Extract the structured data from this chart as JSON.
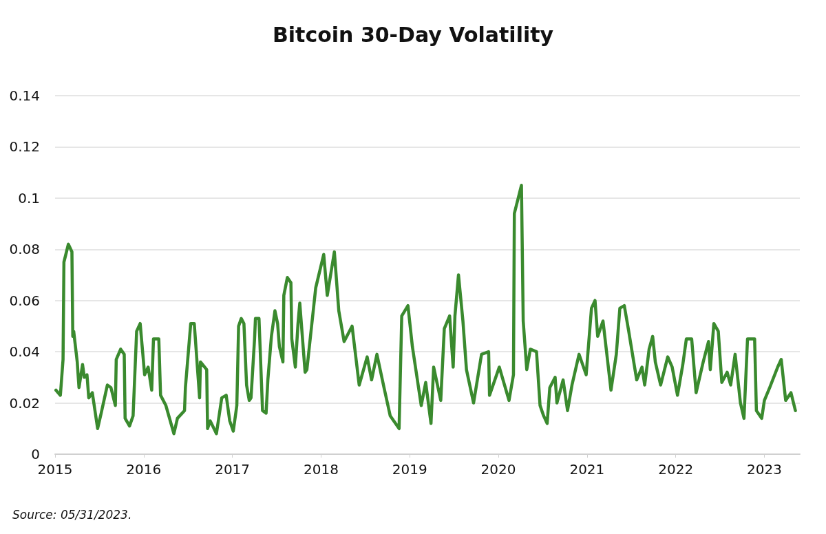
{
  "chart_data": {
    "type": "line",
    "title": "Bitcoin 30-Day Volatility",
    "annotations": [
      "Source: 05/31/2023."
    ],
    "xlim": [
      2015,
      2023.4
    ],
    "xticks": [
      2015,
      2016,
      2017,
      2018,
      2019,
      2020,
      2021,
      2022,
      2023
    ],
    "ylim": [
      0,
      0.14
    ],
    "yticks": [
      0,
      0.02,
      0.04,
      0.06,
      0.08,
      0.1,
      0.12,
      0.14
    ],
    "grid": "y",
    "series": [
      {
        "color": "#3a8a2e",
        "x": [
          2015.01,
          2015.06,
          2015.09,
          2015.1,
          2015.15,
          2015.19,
          2015.2,
          2015.21,
          2015.25,
          2015.27,
          2015.31,
          2015.33,
          2015.36,
          2015.38,
          2015.42,
          2015.48,
          2015.52,
          2015.59,
          2015.63,
          2015.68,
          2015.69,
          2015.74,
          2015.78,
          2015.79,
          2015.84,
          2015.88,
          2015.92,
          2015.96,
          2015.98,
          2016.01,
          2016.05,
          2016.09,
          2016.11,
          2016.17,
          2016.19,
          2016.25,
          2016.34,
          2016.38,
          2016.46,
          2016.47,
          2016.53,
          2016.57,
          2016.63,
          2016.64,
          2016.71,
          2016.72,
          2016.75,
          2016.82,
          2016.88,
          2016.93,
          2016.97,
          2017.01,
          2017.05,
          2017.07,
          2017.1,
          2017.13,
          2017.16,
          2017.19,
          2017.21,
          2017.25,
          2017.26,
          2017.3,
          2017.34,
          2017.38,
          2017.4,
          2017.44,
          2017.48,
          2017.51,
          2017.53,
          2017.57,
          2017.58,
          2017.62,
          2017.66,
          2017.67,
          2017.71,
          2017.74,
          2017.76,
          2017.82,
          2017.84,
          2017.94,
          2018.03,
          2018.07,
          2018.15,
          2018.2,
          2018.26,
          2018.35,
          2018.43,
          2018.52,
          2018.57,
          2018.63,
          2018.71,
          2018.78,
          2018.88,
          2018.91,
          2018.98,
          2019.03,
          2019.13,
          2019.18,
          2019.24,
          2019.27,
          2019.35,
          2019.39,
          2019.45,
          2019.49,
          2019.51,
          2019.55,
          2019.6,
          2019.64,
          2019.72,
          2019.81,
          2019.89,
          2019.9,
          2020.01,
          2020.12,
          2020.17,
          2020.18,
          2020.26,
          2020.28,
          2020.32,
          2020.36,
          2020.43,
          2020.47,
          2020.51,
          2020.55,
          2020.58,
          2020.64,
          2020.66,
          2020.73,
          2020.78,
          2020.83,
          2020.91,
          2020.99,
          2021.05,
          2021.09,
          2021.12,
          2021.18,
          2021.27,
          2021.33,
          2021.37,
          2021.42,
          2021.47,
          2021.56,
          2021.62,
          2021.65,
          2021.7,
          2021.74,
          2021.77,
          2021.83,
          2021.91,
          2021.96,
          2022.02,
          2022.08,
          2022.12,
          2022.18,
          2022.23,
          2022.31,
          2022.37,
          2022.39,
          2022.43,
          2022.48,
          2022.52,
          2022.58,
          2022.62,
          2022.67,
          2022.73,
          2022.77,
          2022.81,
          2022.89,
          2022.91,
          2022.97,
          2023.0,
          2023.06,
          2023.15,
          2023.19,
          2023.24,
          2023.3,
          2023.35
        ],
        "values": [
          0.025,
          0.023,
          0.037,
          0.075,
          0.082,
          0.079,
          0.046,
          0.048,
          0.036,
          0.026,
          0.035,
          0.03,
          0.031,
          0.022,
          0.024,
          0.01,
          0.016,
          0.027,
          0.026,
          0.019,
          0.037,
          0.041,
          0.039,
          0.014,
          0.011,
          0.015,
          0.048,
          0.051,
          0.043,
          0.031,
          0.034,
          0.025,
          0.045,
          0.045,
          0.023,
          0.019,
          0.008,
          0.014,
          0.017,
          0.026,
          0.051,
          0.051,
          0.022,
          0.036,
          0.033,
          0.01,
          0.013,
          0.008,
          0.022,
          0.023,
          0.013,
          0.009,
          0.019,
          0.05,
          0.053,
          0.051,
          0.027,
          0.021,
          0.022,
          0.045,
          0.053,
          0.053,
          0.017,
          0.016,
          0.029,
          0.046,
          0.056,
          0.051,
          0.042,
          0.036,
          0.062,
          0.069,
          0.067,
          0.045,
          0.034,
          0.051,
          0.059,
          0.032,
          0.033,
          0.065,
          0.078,
          0.062,
          0.079,
          0.056,
          0.044,
          0.05,
          0.027,
          0.038,
          0.029,
          0.039,
          0.026,
          0.015,
          0.01,
          0.054,
          0.058,
          0.042,
          0.019,
          0.028,
          0.012,
          0.034,
          0.021,
          0.049,
          0.054,
          0.034,
          0.054,
          0.07,
          0.052,
          0.033,
          0.02,
          0.039,
          0.04,
          0.023,
          0.034,
          0.021,
          0.031,
          0.094,
          0.105,
          0.052,
          0.033,
          0.041,
          0.04,
          0.019,
          0.015,
          0.012,
          0.026,
          0.03,
          0.02,
          0.029,
          0.017,
          0.027,
          0.039,
          0.031,
          0.057,
          0.06,
          0.046,
          0.052,
          0.025,
          0.039,
          0.057,
          0.058,
          0.048,
          0.029,
          0.034,
          0.027,
          0.041,
          0.046,
          0.036,
          0.027,
          0.038,
          0.034,
          0.023,
          0.035,
          0.045,
          0.045,
          0.024,
          0.036,
          0.044,
          0.033,
          0.051,
          0.048,
          0.028,
          0.032,
          0.027,
          0.039,
          0.02,
          0.014,
          0.045,
          0.045,
          0.017,
          0.014,
          0.021,
          0.026,
          0.034,
          0.037,
          0.021,
          0.024,
          0.017
        ]
      }
    ]
  }
}
